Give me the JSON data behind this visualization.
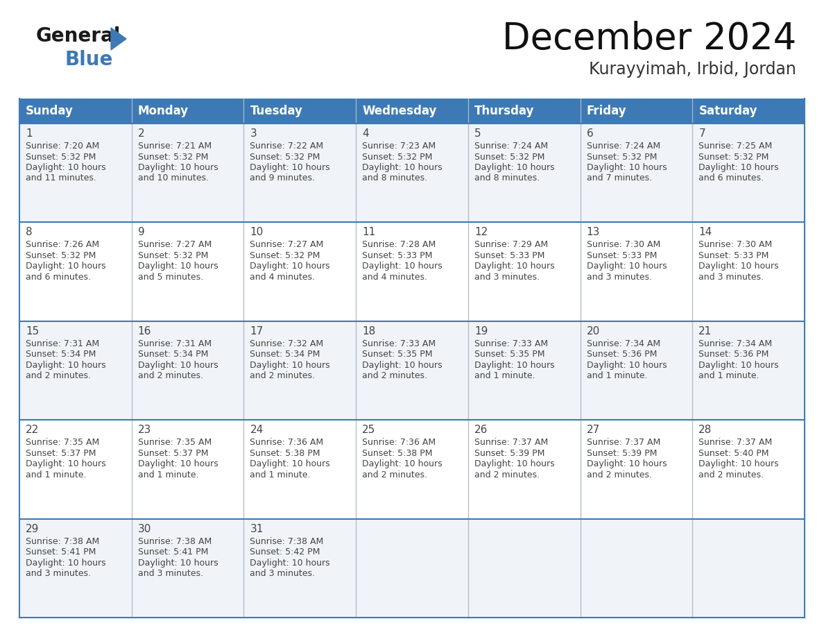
{
  "title": "December 2024",
  "subtitle": "Kurayyimah, Irbid, Jordan",
  "header_color": "#3d7ab5",
  "header_text_color": "#ffffff",
  "cell_bg_light": "#f0f4f8",
  "cell_bg_white": "#ffffff",
  "border_color": "#3d7ab5",
  "divider_color": "#b0b8c8",
  "text_color": "#444444",
  "days_of_week": [
    "Sunday",
    "Monday",
    "Tuesday",
    "Wednesday",
    "Thursday",
    "Friday",
    "Saturday"
  ],
  "calendar_data": [
    [
      {
        "day": 1,
        "sunrise": "7:20 AM",
        "sunset": "5:32 PM",
        "daylight_line1": "10 hours",
        "daylight_line2": "and 11 minutes."
      },
      {
        "day": 2,
        "sunrise": "7:21 AM",
        "sunset": "5:32 PM",
        "daylight_line1": "10 hours",
        "daylight_line2": "and 10 minutes."
      },
      {
        "day": 3,
        "sunrise": "7:22 AM",
        "sunset": "5:32 PM",
        "daylight_line1": "10 hours",
        "daylight_line2": "and 9 minutes."
      },
      {
        "day": 4,
        "sunrise": "7:23 AM",
        "sunset": "5:32 PM",
        "daylight_line1": "10 hours",
        "daylight_line2": "and 8 minutes."
      },
      {
        "day": 5,
        "sunrise": "7:24 AM",
        "sunset": "5:32 PM",
        "daylight_line1": "10 hours",
        "daylight_line2": "and 8 minutes."
      },
      {
        "day": 6,
        "sunrise": "7:24 AM",
        "sunset": "5:32 PM",
        "daylight_line1": "10 hours",
        "daylight_line2": "and 7 minutes."
      },
      {
        "day": 7,
        "sunrise": "7:25 AM",
        "sunset": "5:32 PM",
        "daylight_line1": "10 hours",
        "daylight_line2": "and 6 minutes."
      }
    ],
    [
      {
        "day": 8,
        "sunrise": "7:26 AM",
        "sunset": "5:32 PM",
        "daylight_line1": "10 hours",
        "daylight_line2": "and 6 minutes."
      },
      {
        "day": 9,
        "sunrise": "7:27 AM",
        "sunset": "5:32 PM",
        "daylight_line1": "10 hours",
        "daylight_line2": "and 5 minutes."
      },
      {
        "day": 10,
        "sunrise": "7:27 AM",
        "sunset": "5:32 PM",
        "daylight_line1": "10 hours",
        "daylight_line2": "and 4 minutes."
      },
      {
        "day": 11,
        "sunrise": "7:28 AM",
        "sunset": "5:33 PM",
        "daylight_line1": "10 hours",
        "daylight_line2": "and 4 minutes."
      },
      {
        "day": 12,
        "sunrise": "7:29 AM",
        "sunset": "5:33 PM",
        "daylight_line1": "10 hours",
        "daylight_line2": "and 3 minutes."
      },
      {
        "day": 13,
        "sunrise": "7:30 AM",
        "sunset": "5:33 PM",
        "daylight_line1": "10 hours",
        "daylight_line2": "and 3 minutes."
      },
      {
        "day": 14,
        "sunrise": "7:30 AM",
        "sunset": "5:33 PM",
        "daylight_line1": "10 hours",
        "daylight_line2": "and 3 minutes."
      }
    ],
    [
      {
        "day": 15,
        "sunrise": "7:31 AM",
        "sunset": "5:34 PM",
        "daylight_line1": "10 hours",
        "daylight_line2": "and 2 minutes."
      },
      {
        "day": 16,
        "sunrise": "7:31 AM",
        "sunset": "5:34 PM",
        "daylight_line1": "10 hours",
        "daylight_line2": "and 2 minutes."
      },
      {
        "day": 17,
        "sunrise": "7:32 AM",
        "sunset": "5:34 PM",
        "daylight_line1": "10 hours",
        "daylight_line2": "and 2 minutes."
      },
      {
        "day": 18,
        "sunrise": "7:33 AM",
        "sunset": "5:35 PM",
        "daylight_line1": "10 hours",
        "daylight_line2": "and 2 minutes."
      },
      {
        "day": 19,
        "sunrise": "7:33 AM",
        "sunset": "5:35 PM",
        "daylight_line1": "10 hours",
        "daylight_line2": "and 1 minute."
      },
      {
        "day": 20,
        "sunrise": "7:34 AM",
        "sunset": "5:36 PM",
        "daylight_line1": "10 hours",
        "daylight_line2": "and 1 minute."
      },
      {
        "day": 21,
        "sunrise": "7:34 AM",
        "sunset": "5:36 PM",
        "daylight_line1": "10 hours",
        "daylight_line2": "and 1 minute."
      }
    ],
    [
      {
        "day": 22,
        "sunrise": "7:35 AM",
        "sunset": "5:37 PM",
        "daylight_line1": "10 hours",
        "daylight_line2": "and 1 minute."
      },
      {
        "day": 23,
        "sunrise": "7:35 AM",
        "sunset": "5:37 PM",
        "daylight_line1": "10 hours",
        "daylight_line2": "and 1 minute."
      },
      {
        "day": 24,
        "sunrise": "7:36 AM",
        "sunset": "5:38 PM",
        "daylight_line1": "10 hours",
        "daylight_line2": "and 1 minute."
      },
      {
        "day": 25,
        "sunrise": "7:36 AM",
        "sunset": "5:38 PM",
        "daylight_line1": "10 hours",
        "daylight_line2": "and 2 minutes."
      },
      {
        "day": 26,
        "sunrise": "7:37 AM",
        "sunset": "5:39 PM",
        "daylight_line1": "10 hours",
        "daylight_line2": "and 2 minutes."
      },
      {
        "day": 27,
        "sunrise": "7:37 AM",
        "sunset": "5:39 PM",
        "daylight_line1": "10 hours",
        "daylight_line2": "and 2 minutes."
      },
      {
        "day": 28,
        "sunrise": "7:37 AM",
        "sunset": "5:40 PM",
        "daylight_line1": "10 hours",
        "daylight_line2": "and 2 minutes."
      }
    ],
    [
      {
        "day": 29,
        "sunrise": "7:38 AM",
        "sunset": "5:41 PM",
        "daylight_line1": "10 hours",
        "daylight_line2": "and 3 minutes."
      },
      {
        "day": 30,
        "sunrise": "7:38 AM",
        "sunset": "5:41 PM",
        "daylight_line1": "10 hours",
        "daylight_line2": "and 3 minutes."
      },
      {
        "day": 31,
        "sunrise": "7:38 AM",
        "sunset": "5:42 PM",
        "daylight_line1": "10 hours",
        "daylight_line2": "and 3 minutes."
      },
      null,
      null,
      null,
      null
    ]
  ]
}
